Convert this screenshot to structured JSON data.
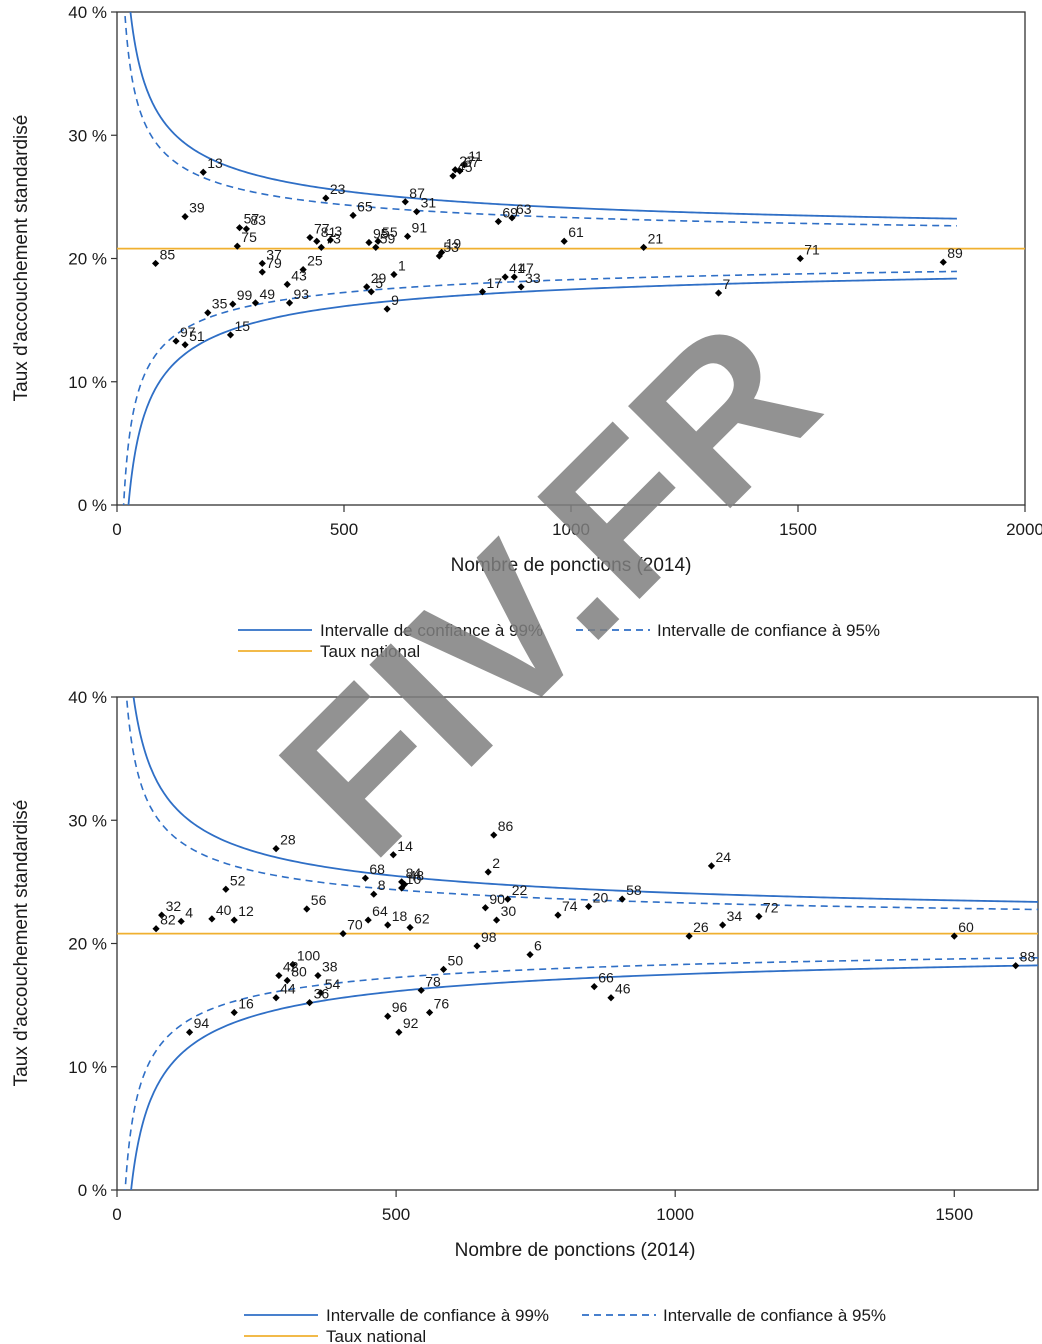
{
  "watermark": "FIV.FR",
  "colors": {
    "ci99": "#2f6fc6",
    "ci95": "#2f6fc6",
    "national": "#f0b030",
    "point": "#000000"
  },
  "chart_data": [
    {
      "type": "scatter",
      "xlabel": "Nombre de ponctions (2014)",
      "ylabel": "Taux d'accouchement standardisé",
      "xlim": [
        0,
        2000
      ],
      "ylim": [
        0,
        40
      ],
      "xticks": [
        0,
        500,
        1000,
        1500,
        2000
      ],
      "yticks": [
        0,
        10,
        20,
        30,
        40
      ],
      "ytick_labels": [
        "0 %",
        "10 %",
        "20 %",
        "30 %",
        "40 %"
      ],
      "national_rate": 20.8,
      "ci_x_max": 1850,
      "legend": {
        "ci99": "Intervalle de confiance à 99%",
        "ci95": "Intervalle de confiance à 95%",
        "national": "Taux national"
      },
      "points": [
        {
          "label": "13",
          "x": 190,
          "y": 27.0
        },
        {
          "label": "27",
          "x": 745,
          "y": 27.2
        },
        {
          "label": "11",
          "x": 765,
          "y": 27.6
        },
        {
          "label": "45",
          "x": 740,
          "y": 26.7
        },
        {
          "label": "67",
          "x": 755,
          "y": 27.1
        },
        {
          "label": "23",
          "x": 460,
          "y": 24.9
        },
        {
          "label": "87",
          "x": 635,
          "y": 24.6
        },
        {
          "label": "39",
          "x": 150,
          "y": 23.4
        },
        {
          "label": "65",
          "x": 520,
          "y": 23.5
        },
        {
          "label": "31",
          "x": 660,
          "y": 23.8
        },
        {
          "label": "69",
          "x": 840,
          "y": 23.0
        },
        {
          "label": "63",
          "x": 870,
          "y": 23.3
        },
        {
          "label": "57",
          "x": 270,
          "y": 22.5
        },
        {
          "label": "83",
          "x": 285,
          "y": 22.4
        },
        {
          "label": "77",
          "x": 425,
          "y": 21.7
        },
        {
          "label": "81",
          "x": 440,
          "y": 21.4
        },
        {
          "label": "95",
          "x": 555,
          "y": 21.3
        },
        {
          "label": "91",
          "x": 640,
          "y": 21.8
        },
        {
          "label": "19",
          "x": 715,
          "y": 20.5
        },
        {
          "label": "61",
          "x": 985,
          "y": 21.4
        },
        {
          "label": "21",
          "x": 1160,
          "y": 20.9
        },
        {
          "label": "75",
          "x": 265,
          "y": 21.0
        },
        {
          "label": "37",
          "x": 320,
          "y": 19.6
        },
        {
          "label": "73",
          "x": 450,
          "y": 20.9
        },
        {
          "label": "3",
          "x": 470,
          "y": 21.5
        },
        {
          "label": "55",
          "x": 575,
          "y": 21.4
        },
        {
          "label": "59",
          "x": 570,
          "y": 20.9
        },
        {
          "label": "85",
          "x": 85,
          "y": 19.6
        },
        {
          "label": "53",
          "x": 710,
          "y": 20.2
        },
        {
          "label": "71",
          "x": 1505,
          "y": 20.0
        },
        {
          "label": "89",
          "x": 1820,
          "y": 19.7
        },
        {
          "label": "25",
          "x": 410,
          "y": 19.1
        },
        {
          "label": "1",
          "x": 610,
          "y": 18.7
        },
        {
          "label": "79",
          "x": 320,
          "y": 18.9
        },
        {
          "label": "43",
          "x": 375,
          "y": 17.9
        },
        {
          "label": "29",
          "x": 550,
          "y": 17.7
        },
        {
          "label": "41",
          "x": 855,
          "y": 18.5
        },
        {
          "label": "47",
          "x": 875,
          "y": 18.5
        },
        {
          "label": "17",
          "x": 805,
          "y": 17.3
        },
        {
          "label": "33",
          "x": 890,
          "y": 17.7
        },
        {
          "label": "7",
          "x": 1325,
          "y": 17.2
        },
        {
          "label": "99",
          "x": 255,
          "y": 16.3
        },
        {
          "label": "49",
          "x": 305,
          "y": 16.4
        },
        {
          "label": "35",
          "x": 200,
          "y": 15.6
        },
        {
          "label": "93",
          "x": 380,
          "y": 16.4
        },
        {
          "label": "5",
          "x": 560,
          "y": 17.3
        },
        {
          "label": "9",
          "x": 595,
          "y": 15.9
        },
        {
          "label": "15",
          "x": 250,
          "y": 13.8
        },
        {
          "label": "97",
          "x": 130,
          "y": 13.3
        },
        {
          "label": "51",
          "x": 150,
          "y": 13.0
        }
      ]
    },
    {
      "type": "scatter",
      "xlabel": "Nombre de ponctions (2014)",
      "ylabel": "Taux d'accouchement standardisé",
      "xlim": [
        0,
        1650
      ],
      "ylim": [
        0,
        40
      ],
      "xticks": [
        0,
        500,
        1000,
        1500
      ],
      "yticks": [
        0,
        10,
        20,
        30,
        40
      ],
      "ytick_labels": [
        "0 %",
        "10 %",
        "20 %",
        "30 %",
        "40 %"
      ],
      "national_rate": 20.8,
      "ci_x_max": 1650,
      "legend": {
        "ci99": "Intervalle de confiance à 99%",
        "ci95": "Intervalle de confiance à 95%",
        "national": "Taux national"
      },
      "points": [
        {
          "label": "28",
          "x": 285,
          "y": 27.7
        },
        {
          "label": "86",
          "x": 675,
          "y": 28.8
        },
        {
          "label": "14",
          "x": 495,
          "y": 27.2
        },
        {
          "label": "24",
          "x": 1065,
          "y": 26.3
        },
        {
          "label": "2",
          "x": 665,
          "y": 25.8
        },
        {
          "label": "68",
          "x": 445,
          "y": 25.3
        },
        {
          "label": "84",
          "x": 510,
          "y": 25.0
        },
        {
          "label": "48",
          "x": 515,
          "y": 24.8
        },
        {
          "label": "8",
          "x": 460,
          "y": 24.0
        },
        {
          "label": "10",
          "x": 510,
          "y": 24.5
        },
        {
          "label": "52",
          "x": 195,
          "y": 24.4
        },
        {
          "label": "22",
          "x": 700,
          "y": 23.6
        },
        {
          "label": "58",
          "x": 905,
          "y": 23.6
        },
        {
          "label": "20",
          "x": 845,
          "y": 23.0
        },
        {
          "label": "90",
          "x": 660,
          "y": 22.9
        },
        {
          "label": "74",
          "x": 790,
          "y": 22.3
        },
        {
          "label": "72",
          "x": 1150,
          "y": 22.2
        },
        {
          "label": "56",
          "x": 340,
          "y": 22.8
        },
        {
          "label": "32",
          "x": 80,
          "y": 22.3
        },
        {
          "label": "4",
          "x": 115,
          "y": 21.8
        },
        {
          "label": "40",
          "x": 170,
          "y": 22.0
        },
        {
          "label": "12",
          "x": 210,
          "y": 21.9
        },
        {
          "label": "18",
          "x": 485,
          "y": 21.5
        },
        {
          "label": "64",
          "x": 450,
          "y": 21.9
        },
        {
          "label": "62",
          "x": 525,
          "y": 21.3
        },
        {
          "label": "30",
          "x": 680,
          "y": 21.9
        },
        {
          "label": "34",
          "x": 1085,
          "y": 21.5
        },
        {
          "label": "82",
          "x": 70,
          "y": 21.2
        },
        {
          "label": "70",
          "x": 405,
          "y": 20.8
        },
        {
          "label": "26",
          "x": 1025,
          "y": 20.6
        },
        {
          "label": "60",
          "x": 1500,
          "y": 20.6
        },
        {
          "label": "98",
          "x": 645,
          "y": 19.8
        },
        {
          "label": "6",
          "x": 740,
          "y": 19.1
        },
        {
          "label": "100",
          "x": 315,
          "y": 18.3
        },
        {
          "label": "50",
          "x": 585,
          "y": 17.9
        },
        {
          "label": "88",
          "x": 1610,
          "y": 18.2
        },
        {
          "label": "42",
          "x": 290,
          "y": 17.4
        },
        {
          "label": "38",
          "x": 360,
          "y": 17.4
        },
        {
          "label": "80",
          "x": 305,
          "y": 17.0
        },
        {
          "label": "54",
          "x": 365,
          "y": 16.0
        },
        {
          "label": "78",
          "x": 545,
          "y": 16.2
        },
        {
          "label": "66",
          "x": 855,
          "y": 16.5
        },
        {
          "label": "46",
          "x": 885,
          "y": 15.6
        },
        {
          "label": "16",
          "x": 210,
          "y": 14.4
        },
        {
          "label": "44",
          "x": 285,
          "y": 15.6
        },
        {
          "label": "36",
          "x": 345,
          "y": 15.2
        },
        {
          "label": "96",
          "x": 485,
          "y": 14.1
        },
        {
          "label": "76",
          "x": 560,
          "y": 14.4
        },
        {
          "label": "94",
          "x": 130,
          "y": 12.8
        },
        {
          "label": "92",
          "x": 505,
          "y": 12.8
        }
      ]
    }
  ]
}
